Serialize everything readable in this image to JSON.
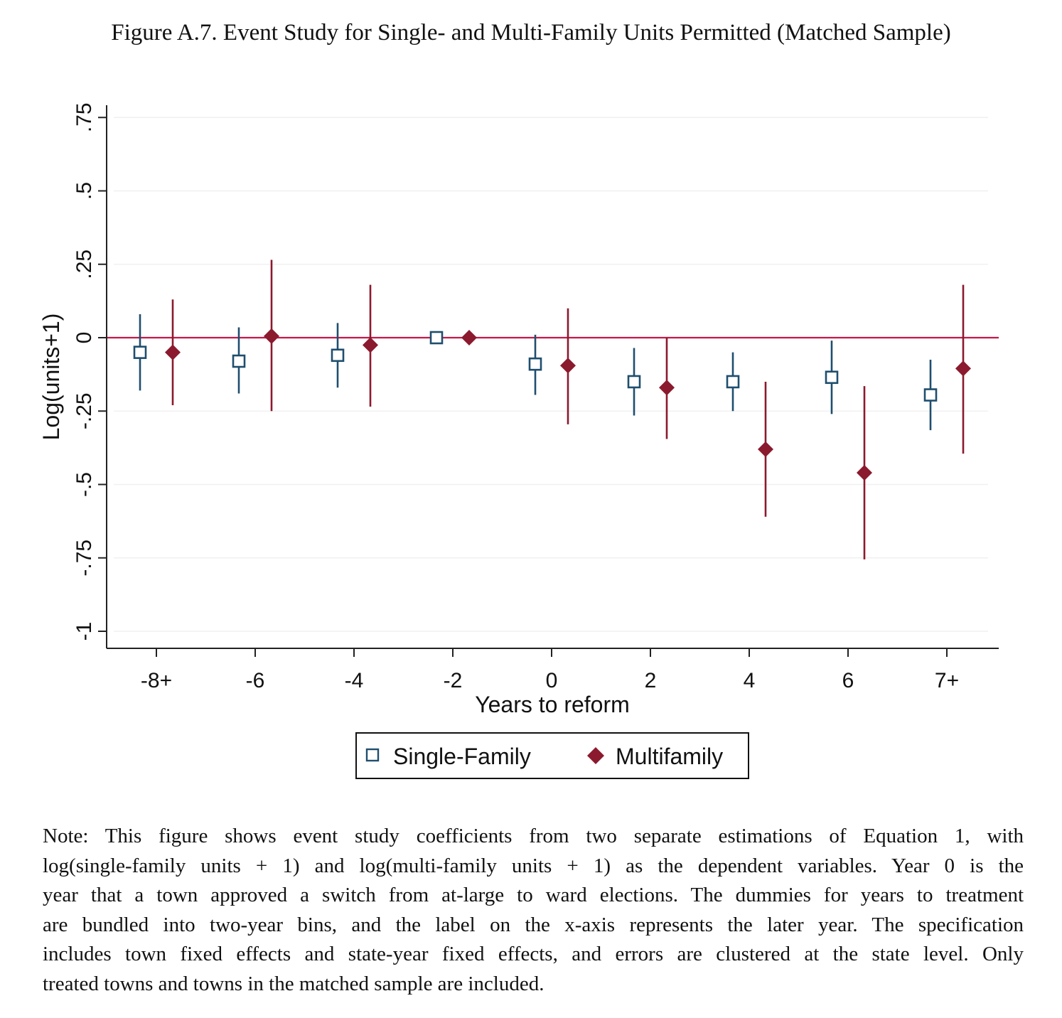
{
  "figure": {
    "title": "Figure A.7. Event Study for Single- and Multi-Family Units Permitted (Matched Sample)",
    "note_lines": [
      "Note:  This figure shows event study coefficients from two separate estimations of Equation 1, with",
      "log(single-family units + 1) and log(multi-family units + 1) as the dependent variables.  Year 0 is the",
      "year that a town approved a switch from at-large to ward elections. The dummies for years to treatment",
      "are bundled into two-year bins, and the label on the x-axis represents the later year.  The specification",
      "includes town fixed effects and state-year fixed effects, and errors are clustered at the state level.  Only",
      "treated towns and towns in the matched sample are included."
    ]
  },
  "colors": {
    "single_family": "#1f4e6e",
    "multifamily": "#8b1a2e",
    "zero_line": "#c8174a",
    "axis": "#222222"
  },
  "chart_data": {
    "type": "scatter",
    "title": "",
    "xlabel": "Years to reform",
    "ylabel": "Log(units+1)",
    "categories": [
      "-8+",
      "-6",
      "-4",
      "-2",
      "0",
      "2",
      "4",
      "6",
      "7+"
    ],
    "ylim": [
      -1,
      0.75
    ],
    "yticks": [
      -1,
      -0.75,
      -0.5,
      -0.25,
      0,
      0.25,
      0.5,
      0.75
    ],
    "ytick_labels": [
      "-1",
      "-.75",
      "-.5",
      "-.25",
      "0",
      ".25",
      ".5",
      ".75"
    ],
    "grid": true,
    "reference_line": 0,
    "legend": {
      "position": "bottom",
      "entries": [
        "Single-Family",
        "Multifamily"
      ]
    },
    "series": [
      {
        "name": "Single-Family",
        "marker": "hollow-square",
        "values": [
          -0.05,
          -0.08,
          -0.06,
          0.0,
          -0.09,
          -0.15,
          -0.15,
          -0.135,
          -0.195
        ],
        "ci_low": [
          -0.18,
          -0.19,
          -0.17,
          0.0,
          -0.195,
          -0.265,
          -0.25,
          -0.26,
          -0.315
        ],
        "ci_high": [
          0.08,
          0.035,
          0.05,
          0.0,
          0.01,
          -0.035,
          -0.05,
          -0.01,
          -0.075
        ]
      },
      {
        "name": "Multifamily",
        "marker": "filled-diamond",
        "values": [
          -0.05,
          0.005,
          -0.025,
          0.0,
          -0.095,
          -0.17,
          -0.38,
          -0.46,
          -0.105
        ],
        "ci_low": [
          -0.23,
          -0.25,
          -0.235,
          0.0,
          -0.295,
          -0.345,
          -0.61,
          -0.755,
          -0.395
        ],
        "ci_high": [
          0.13,
          0.265,
          0.18,
          0.0,
          0.1,
          0.0,
          -0.15,
          -0.165,
          0.18
        ]
      }
    ]
  }
}
